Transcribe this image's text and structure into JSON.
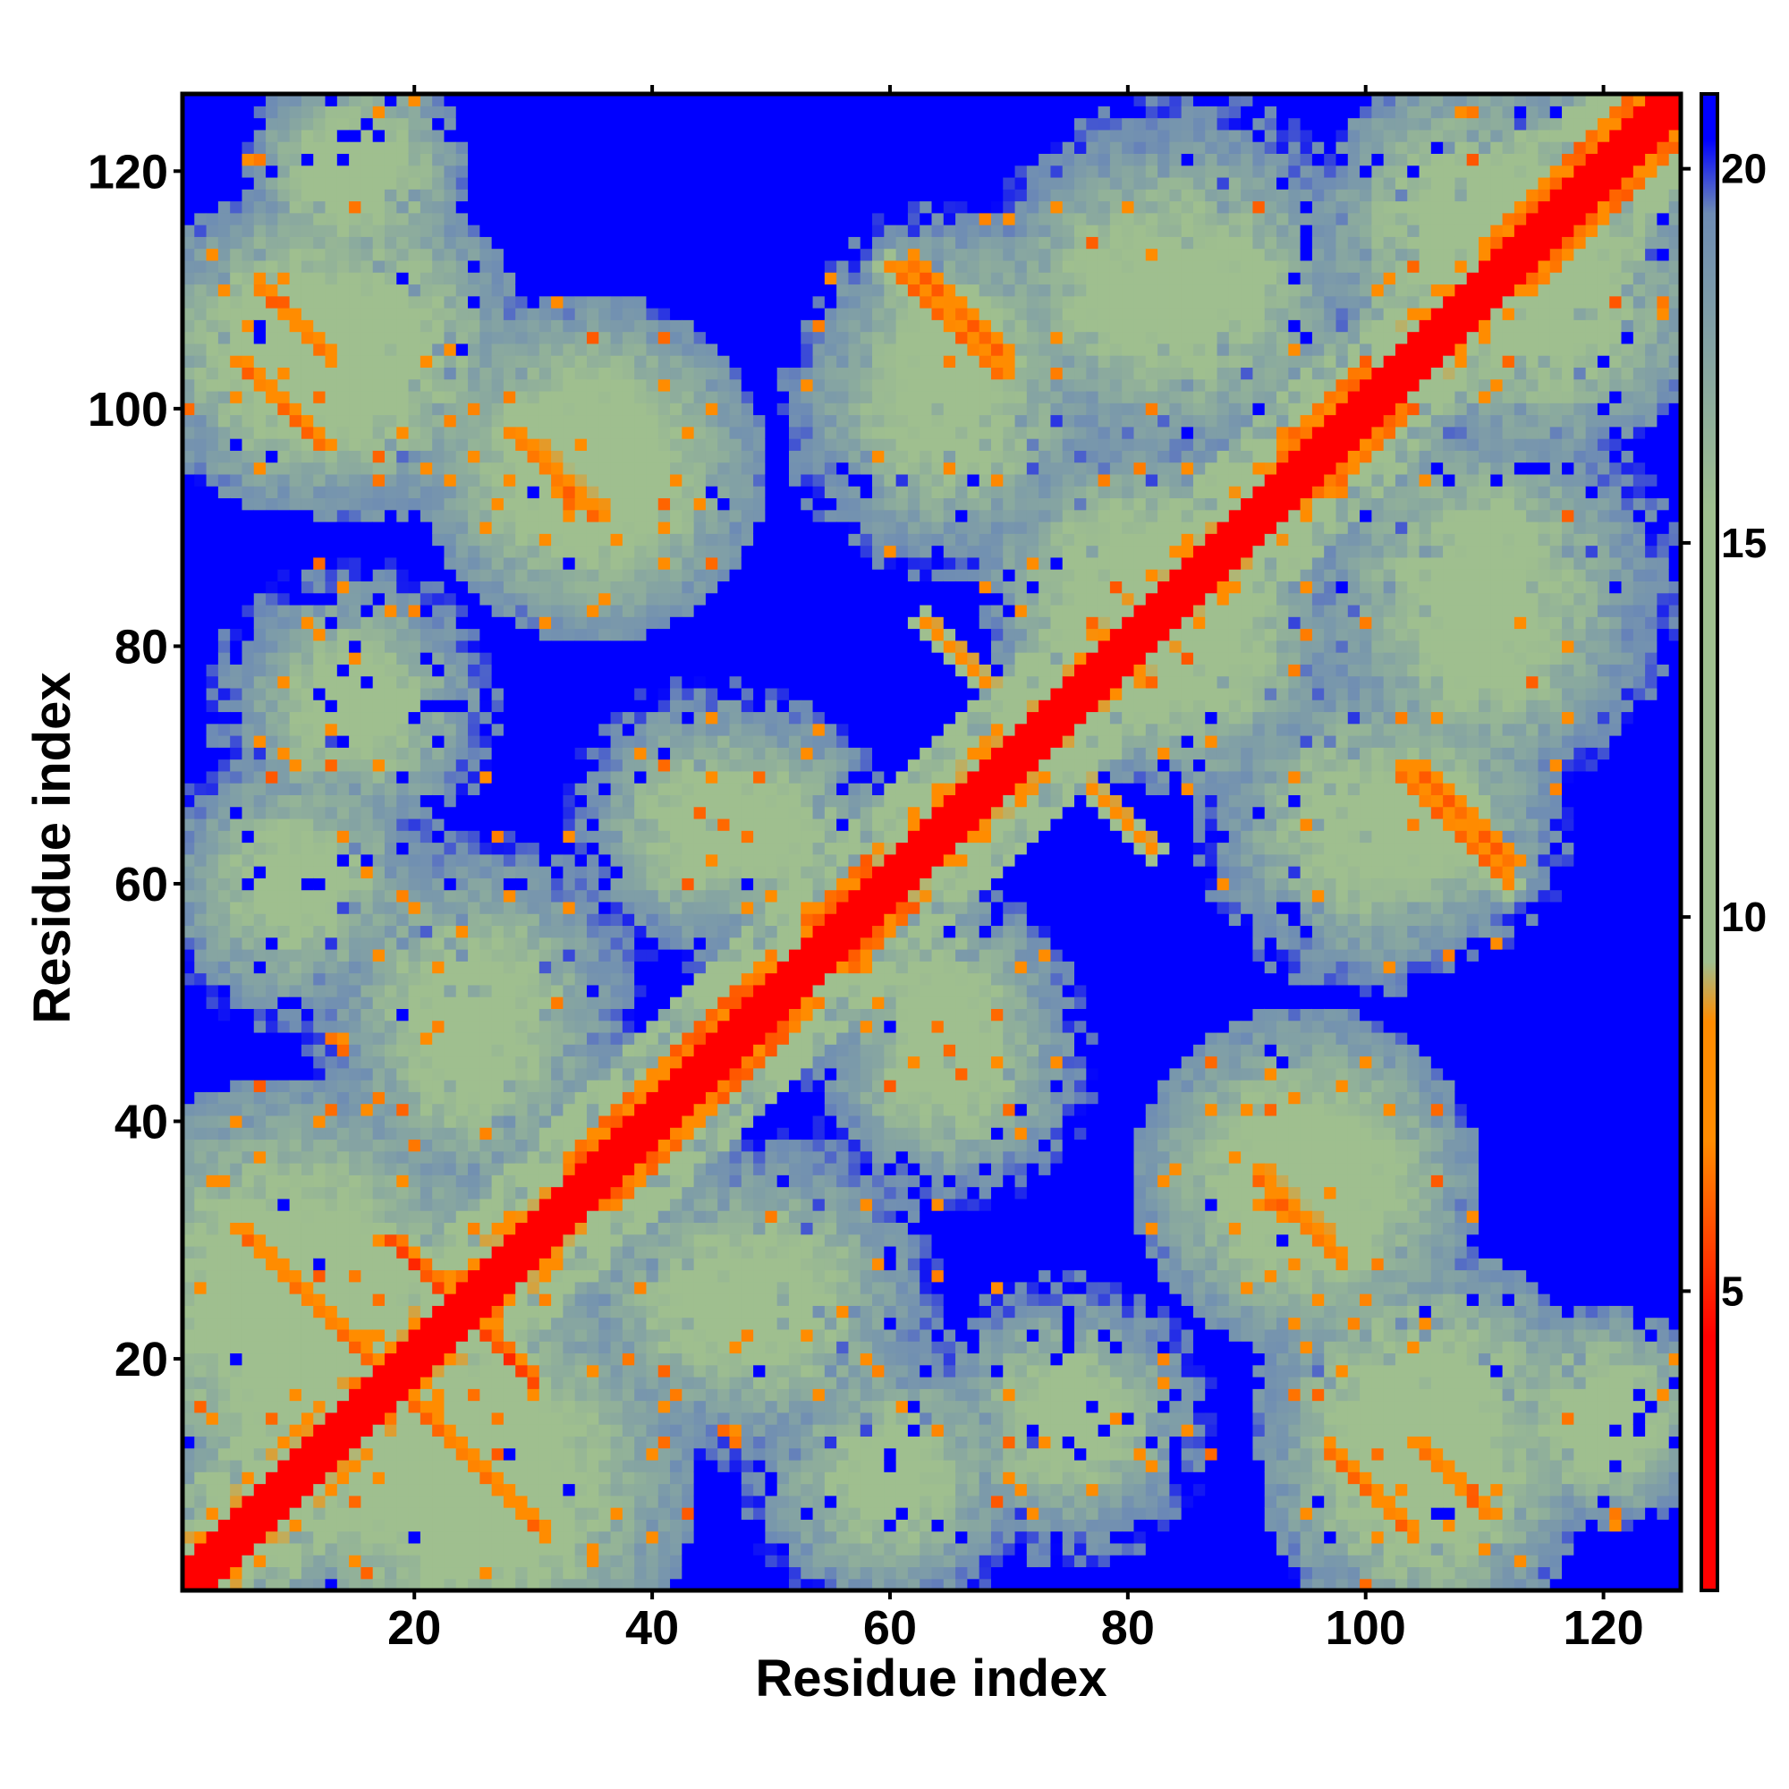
{
  "chart_data": {
    "type": "heatmap",
    "title": "",
    "xlabel": "Residue index",
    "ylabel": "Residue index",
    "n_residues": 126,
    "xlim": [
      1,
      126
    ],
    "ylim": [
      1,
      126
    ],
    "x_ticks": [
      20,
      40,
      60,
      80,
      100,
      120
    ],
    "y_ticks": [
      20,
      40,
      60,
      80,
      100,
      120
    ],
    "colorbar": {
      "ticks": [
        5,
        10,
        15,
        20
      ],
      "range": [
        1,
        21
      ],
      "orientation": "vertical",
      "placement": "right",
      "colors": [
        "#ff0000",
        "#ff8c00",
        "#9fbf8f",
        "#6e8cb4",
        "#0000ff"
      ]
    },
    "background_value": 21,
    "diagonal_value": 1.5,
    "contact_features": [
      {
        "kind": "helix",
        "from": 33,
        "to": 50,
        "value": 6
      },
      {
        "kind": "helix",
        "from": 53,
        "to": 58,
        "value": 6
      },
      {
        "kind": "helix",
        "from": 93,
        "to": 100,
        "value": 6
      },
      {
        "kind": "helix",
        "from": 110,
        "to": 126,
        "value": 6
      },
      {
        "kind": "antiparallel",
        "i_from": 5,
        "j_from": 31,
        "length": 16,
        "value": 6
      },
      {
        "kind": "antiparallel",
        "i_from": 18,
        "j_from": 30,
        "length": 12,
        "value": 5
      },
      {
        "kind": "antiparallel",
        "i_from": 5,
        "j_from": 104,
        "length": 8,
        "value": 6
      },
      {
        "kind": "antiparallel",
        "i_from": 28,
        "j_from": 98,
        "length": 8,
        "value": 6
      },
      {
        "kind": "antiparallel",
        "i_from": 60,
        "j_from": 112,
        "length": 10,
        "value": 6
      },
      {
        "kind": "antiparallel",
        "i_from": 104,
        "j_from": 70,
        "length": 9,
        "value": 6
      },
      {
        "kind": "antiparallel",
        "i_from": 91,
        "j_from": 36,
        "length": 6,
        "value": 7
      },
      {
        "kind": "antiparallel",
        "i_from": 104,
        "j_from": 13,
        "length": 7,
        "value": 6
      },
      {
        "kind": "antiparallel",
        "i_from": 63,
        "j_from": 82,
        "length": 6,
        "value": 7
      }
    ],
    "domain_clusters": [
      {
        "center": [
          10,
          25
        ],
        "radius": 18,
        "value": 11
      },
      {
        "center": [
          25,
          10
        ],
        "radius": 18,
        "value": 11
      },
      {
        "center": [
          15,
          105
        ],
        "radius": 14,
        "value": 11
      },
      {
        "center": [
          35,
          95
        ],
        "radius": 14,
        "value": 11
      },
      {
        "center": [
          65,
          105
        ],
        "radius": 12,
        "value": 12
      },
      {
        "center": [
          85,
          110
        ],
        "radius": 16,
        "value": 12
      },
      {
        "center": [
          115,
          110
        ],
        "radius": 14,
        "value": 11
      },
      {
        "center": [
          95,
          35
        ],
        "radius": 14,
        "value": 11
      },
      {
        "center": [
          105,
          10
        ],
        "radius": 13,
        "value": 11
      },
      {
        "center": [
          60,
          10
        ],
        "radius": 12,
        "value": 12
      },
      {
        "center": [
          45,
          25
        ],
        "radius": 12,
        "value": 12
      },
      {
        "center": [
          25,
          50
        ],
        "radius": 14,
        "value": 12
      },
      {
        "center": [
          45,
          65
        ],
        "radius": 12,
        "value": 12
      },
      {
        "center": [
          100,
          65
        ],
        "radius": 14,
        "value": 12
      },
      {
        "center": [
          110,
          80
        ],
        "radius": 13,
        "value": 12
      },
      {
        "center": [
          80,
          85
        ],
        "radius": 12,
        "value": 11
      },
      {
        "center": [
          120,
          15
        ],
        "radius": 9,
        "value": 11
      },
      {
        "center": [
          15,
          75
        ],
        "radius": 12,
        "value": 12
      },
      {
        "center": [
          65,
          50
        ],
        "radius": 10,
        "value": 12
      }
    ]
  }
}
